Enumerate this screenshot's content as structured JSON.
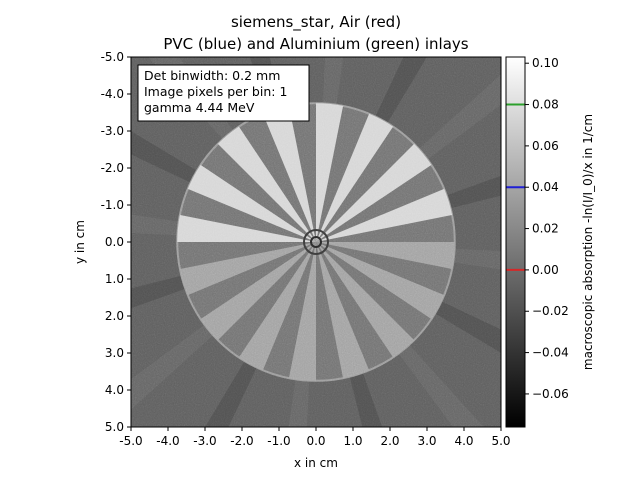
{
  "chart_data": {
    "type": "heatmap",
    "title_line1": "siemens_star, Air (red)",
    "title_line2": "PVC (blue) and Aluminium (green) inlays",
    "xlabel": "x in cm",
    "ylabel": "y in cm",
    "xlim": [
      -5.0,
      5.0
    ],
    "ylim": [
      -5.0,
      5.0
    ],
    "y_inverted": true,
    "x_ticks": [
      -5.0,
      -4.0,
      -3.0,
      -2.0,
      -1.0,
      0.0,
      1.0,
      2.0,
      3.0,
      4.0,
      5.0
    ],
    "x_tick_labels": [
      "-5.0",
      "-4.0",
      "-3.0",
      "-2.0",
      "-1.0",
      "0.0",
      "1.0",
      "2.0",
      "3.0",
      "4.0",
      "5.0"
    ],
    "y_ticks": [
      -5.0,
      -4.0,
      -3.0,
      -2.0,
      -1.0,
      0.0,
      1.0,
      2.0,
      3.0,
      4.0,
      5.0
    ],
    "y_tick_labels": [
      "-5.0",
      "-4.0",
      "-3.0",
      "-2.0",
      "-1.0",
      "0.0",
      "1.0",
      "2.0",
      "3.0",
      "4.0",
      "5.0"
    ],
    "annotation_lines": [
      "Det binwidth: 0.2 mm",
      "Image pixels per bin: 1",
      "gamma 4.44 MeV"
    ],
    "grid": false,
    "colormap": "gray",
    "colorbar": {
      "label": "macroscopic absorption -ln(I/I_0)/x in 1/cm",
      "range": [
        -0.076,
        0.103
      ],
      "ticks": [
        -0.06,
        -0.04,
        -0.02,
        0.0,
        0.02,
        0.04,
        0.06,
        0.08,
        0.1
      ],
      "tick_labels": [
        "−0.06",
        "−0.04",
        "−0.02",
        "0.00",
        "0.02",
        "0.04",
        "0.06",
        "0.08",
        "0.10"
      ],
      "markers": [
        {
          "material": "Air",
          "value": 0.0,
          "color": "#d62728"
        },
        {
          "material": "PVC",
          "value": 0.04,
          "color": "#1f1fd6"
        },
        {
          "material": "Aluminium",
          "value": 0.08,
          "color": "#2ca02c"
        }
      ]
    },
    "phantom": {
      "disc_radius": 3.75,
      "spoke_count": 16,
      "background_value": -0.01,
      "air_value": 0.0,
      "pvc_value": 0.04,
      "aluminium_value": 0.08
    }
  }
}
